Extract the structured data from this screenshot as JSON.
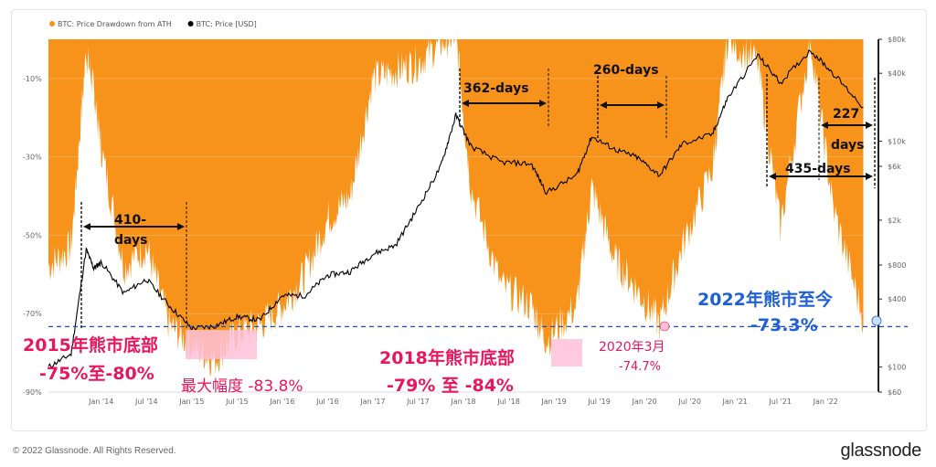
{
  "legend": [
    {
      "label": "BTC: Price Drawdown from ATH",
      "color": "#f7931a"
    },
    {
      "label": "BTC: Price [USD]",
      "color": "#000000"
    }
  ],
  "footer": {
    "copyright": "© 2022 Glassnode. All Rights Reserved.",
    "brand": "glassnode"
  },
  "chart_data": {
    "type": "area",
    "x_ticks": [
      "Jan '14",
      "Jul '14",
      "Jan '15",
      "Jul '15",
      "Jan '16",
      "Jul '16",
      "Jan '17",
      "Jul '17",
      "Jan '18",
      "Jul '18",
      "Jan '19",
      "Jul '19",
      "Jan '20",
      "Jul '20",
      "Jan '21",
      "Jul '21",
      "Jan '22"
    ],
    "y_left_ticks": [
      "-10%",
      "-30%",
      "-50%",
      "-70%",
      "-90%"
    ],
    "y_left_range": [
      -90,
      0
    ],
    "y_right_ticks": [
      "$80k",
      "$40k",
      "$10k",
      "$6k",
      "$2k",
      "$800",
      "$400",
      "$100",
      "$60"
    ],
    "y_right_scale": "log",
    "series": [
      {
        "name": "BTC: Price Drawdown from ATH",
        "x": [
          "2013-06",
          "2013-09",
          "2013-11",
          "2013-12",
          "2014-01",
          "2014-04",
          "2014-07",
          "2014-10",
          "2015-01",
          "2015-04",
          "2015-07",
          "2015-10",
          "2016-01",
          "2016-04",
          "2016-07",
          "2016-10",
          "2017-01",
          "2017-04",
          "2017-07",
          "2017-10",
          "2017-12",
          "2018-02",
          "2018-06",
          "2018-10",
          "2018-12",
          "2019-04",
          "2019-06",
          "2019-09",
          "2019-12",
          "2020-03",
          "2020-06",
          "2020-10",
          "2020-12",
          "2021-04",
          "2021-07",
          "2021-11",
          "2022-02",
          "2022-06"
        ],
        "values": [
          -60,
          -55,
          -5,
          -15,
          -30,
          -60,
          -55,
          -75,
          -80,
          -83.8,
          -77,
          -75,
          -70,
          -62,
          -48,
          -42,
          -12,
          -10,
          -8,
          -3,
          -1,
          -40,
          -65,
          -70,
          -79,
          -70,
          -40,
          -58,
          -66,
          -74.7,
          -55,
          -35,
          -2,
          -8,
          -50,
          -2,
          -45,
          -73.3
        ]
      },
      {
        "name": "BTC: Price [USD]",
        "x": [
          "2013-06",
          "2013-09",
          "2013-11",
          "2013-12",
          "2014-01",
          "2014-04",
          "2014-07",
          "2014-10",
          "2015-01",
          "2015-04",
          "2015-07",
          "2015-10",
          "2016-01",
          "2016-04",
          "2016-07",
          "2016-10",
          "2017-01",
          "2017-04",
          "2017-07",
          "2017-10",
          "2017-12",
          "2018-02",
          "2018-06",
          "2018-10",
          "2018-12",
          "2019-04",
          "2019-06",
          "2019-09",
          "2019-12",
          "2020-03",
          "2020-06",
          "2020-10",
          "2020-12",
          "2021-04",
          "2021-07",
          "2021-11",
          "2022-02",
          "2022-06"
        ],
        "values": [
          100,
          130,
          1100,
          750,
          850,
          450,
          600,
          350,
          220,
          230,
          280,
          260,
          430,
          430,
          650,
          700,
          1000,
          1200,
          2600,
          6000,
          17000,
          9000,
          6500,
          6300,
          3500,
          5000,
          11000,
          8500,
          7200,
          5000,
          9500,
          11500,
          24000,
          58000,
          33000,
          64000,
          40000,
          20000
        ]
      }
    ],
    "annotations": [
      {
        "text": "410-",
        "color": "#111"
      },
      {
        "text": "days",
        "color": "#111"
      },
      {
        "text": "362-days",
        "color": "#111"
      },
      {
        "text": "260-days",
        "color": "#111"
      },
      {
        "text": "227",
        "color": "#111"
      },
      {
        "text": "days",
        "color": "#111"
      },
      {
        "text": "435-days",
        "color": "#111"
      },
      {
        "text": "2015年熊市底部",
        "color": "#e8175d"
      },
      {
        "text": "-75%至-80%",
        "color": "#e8175d"
      },
      {
        "text": "最大幅度 -83.8%",
        "color": "#e8175d"
      },
      {
        "text": "2018年熊市底部",
        "color": "#e8175d"
      },
      {
        "text": "-79% 至 -84%",
        "color": "#e8175d"
      },
      {
        "text": "2020年3月",
        "color": "#e8175d"
      },
      {
        "text": "-74.7%",
        "color": "#e8175d"
      },
      {
        "text": "2022年熊市至今",
        "color": "#1f5fd6"
      },
      {
        "text": "-73.3%",
        "color": "#1f5fd6"
      }
    ],
    "reference_line": {
      "value": -73.3,
      "color": "#1f4fb8"
    },
    "colors": {
      "drawdown": "#f7931a",
      "price": "#000000",
      "highlight": "#ffc0d8",
      "accent_red": "#e8175d",
      "accent_blue": "#1f5fd6"
    }
  }
}
